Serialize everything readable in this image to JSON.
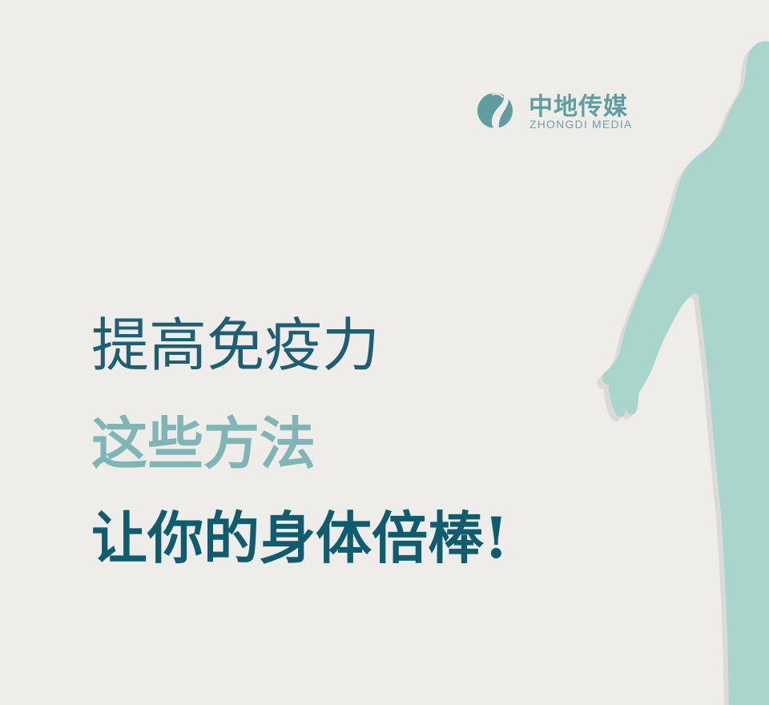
{
  "logo": {
    "name_cn": "中地传媒",
    "name_en": "ZHONGDI MEDIA"
  },
  "headline": {
    "line1": "提高免疫力",
    "line2": "这些方法",
    "line3": "让你的身体倍棒!"
  },
  "colors": {
    "background": "#efedea",
    "figure": "#a9d5cc",
    "line1": "#1e5f73",
    "line2": "#7fb5b5",
    "line3": "#0e5c6e",
    "logo": "#5f9ea0"
  },
  "icons": {
    "logo_mark": "leaf-swirl-logo-icon",
    "figure": "human-silhouette"
  }
}
